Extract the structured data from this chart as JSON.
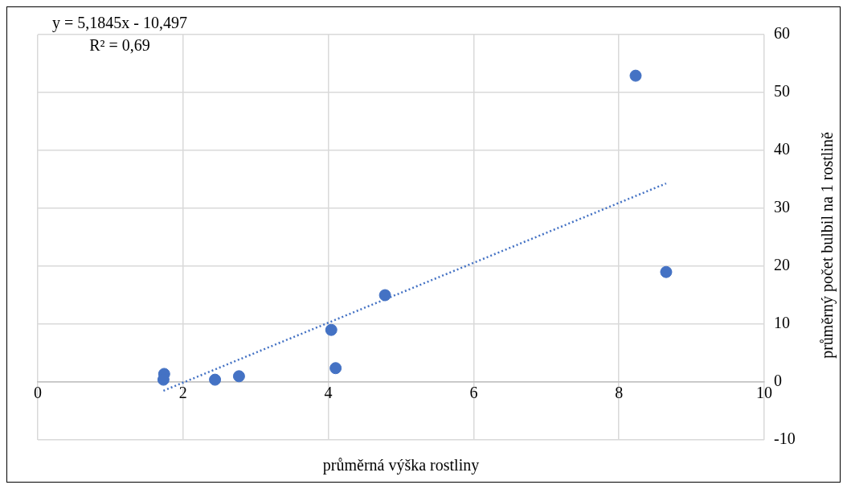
{
  "chart_data": {
    "type": "scatter",
    "xlabel": "průměrná výška rostliny",
    "ylabel": "průměrný počet bulbil na 1 rostlině",
    "annotations": [
      "y = 5,1845x - 10,497",
      "R² = 0,69"
    ],
    "series": [
      {
        "color": "#4472c4",
        "x": [
          1.74,
          1.73,
          2.44,
          2.77,
          4.04,
          4.1,
          4.78,
          8.23,
          8.65
        ],
        "values": [
          1.4,
          0.4,
          0.4,
          1.0,
          9.0,
          2.4,
          15.0,
          52.9,
          19.0
        ],
        "marker": "circle"
      },
      {
        "type": "line",
        "color": "#4472c4",
        "x": [
          1.73,
          8.65
        ],
        "values": [
          -1.5,
          34.3
        ],
        "line_style": "dotted",
        "marker": "none"
      }
    ],
    "xlim": [
      0,
      10
    ],
    "xticks": [
      0,
      2,
      4,
      6,
      8,
      10
    ],
    "ylim": [
      -10,
      60
    ],
    "yticks": [
      -10,
      0,
      10,
      20,
      30,
      40,
      50,
      60
    ],
    "grid": true,
    "legend": false
  }
}
